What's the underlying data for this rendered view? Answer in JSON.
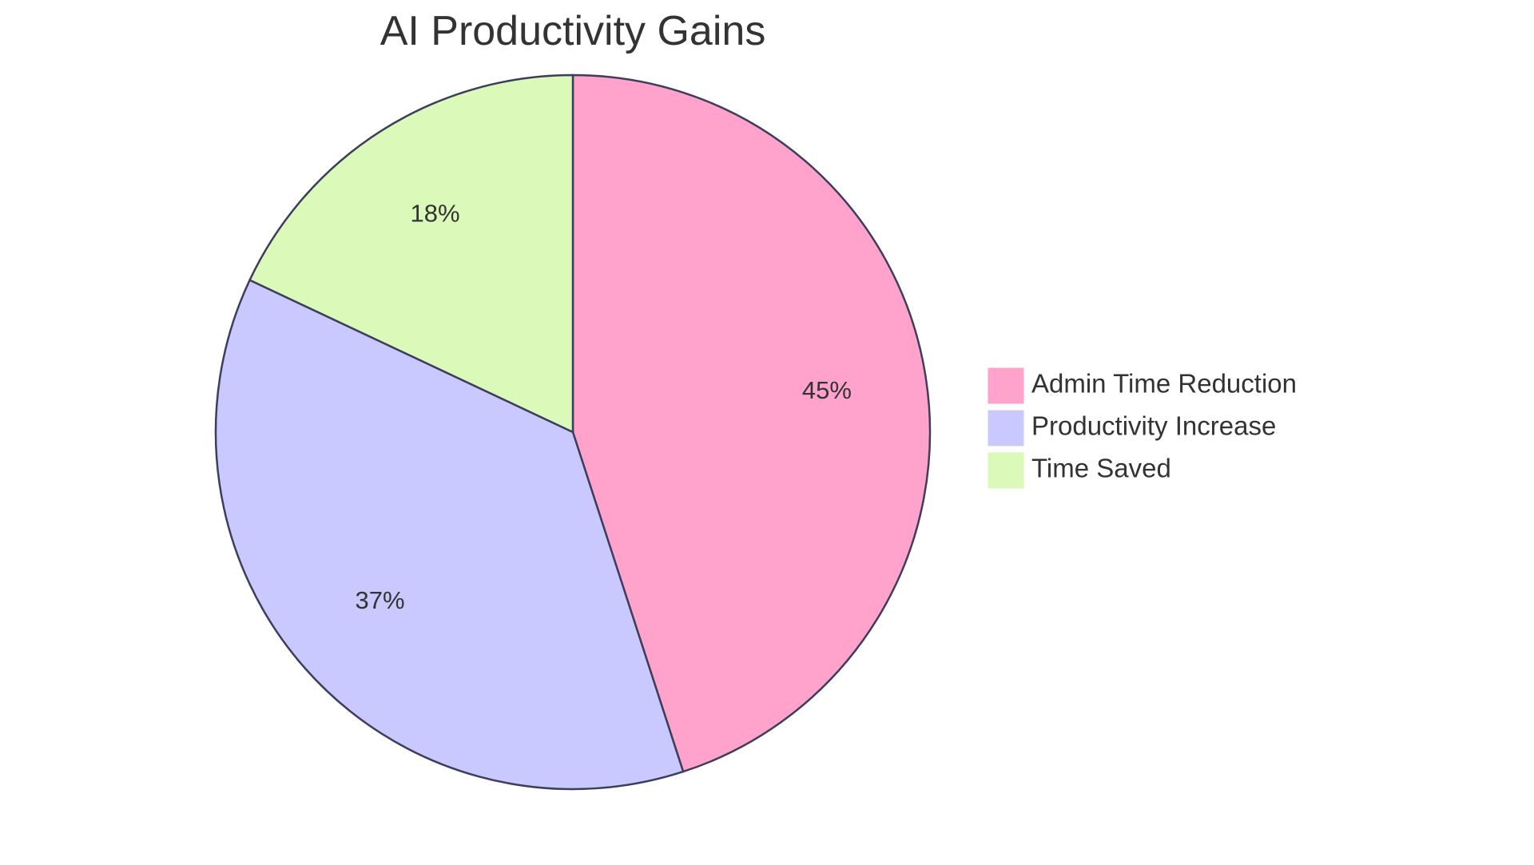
{
  "chart_data": {
    "type": "pie",
    "title": "AI Productivity Gains",
    "series": [
      {
        "name": "Admin Time Reduction",
        "value": 45,
        "label": "45%",
        "color": "#ffa3cc"
      },
      {
        "name": "Productivity Increase",
        "value": 37,
        "label": "37%",
        "color": "#c9c9ff"
      },
      {
        "name": "Time Saved",
        "value": 18,
        "label": "18%",
        "color": "#dbfab9"
      }
    ],
    "legend_position": "right",
    "start_angle": "12 o'clock",
    "direction": "clockwise",
    "stroke_color": "#3d3d5c"
  }
}
